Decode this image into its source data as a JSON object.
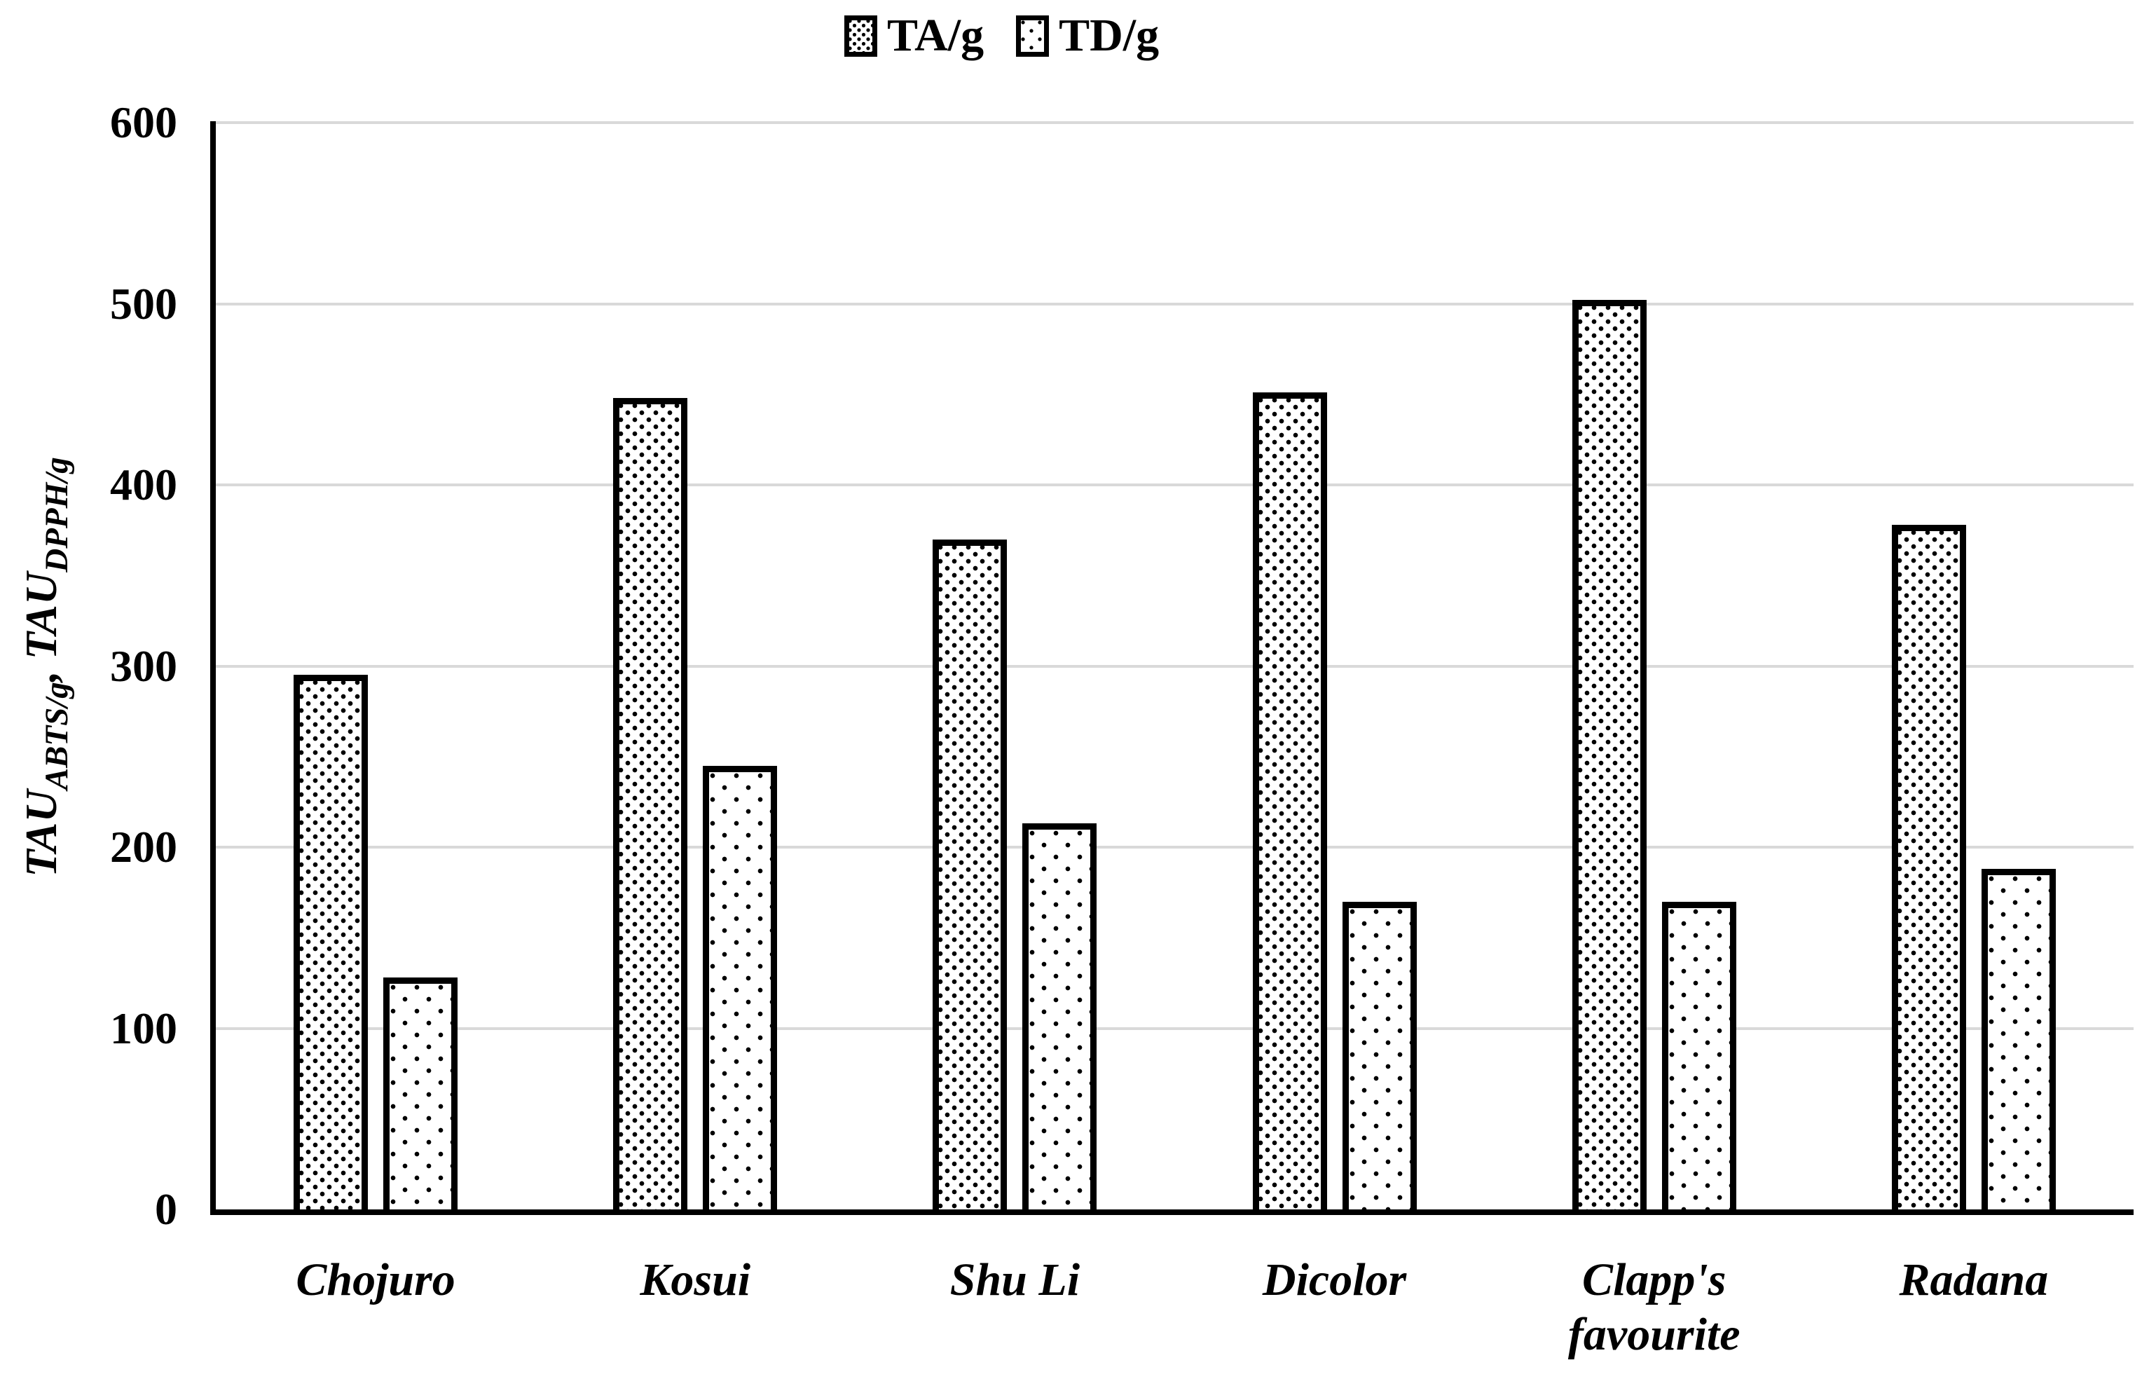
{
  "legend": {
    "items": [
      {
        "label": "TA/g",
        "pattern": "dense-dots"
      },
      {
        "label": "TD/g",
        "pattern": "sparse-dots"
      }
    ]
  },
  "y_axis": {
    "title_parts": {
      "p0": "TAU",
      "p0_sub": "ABTS/g",
      "p1": ", ",
      "p2": "TAU",
      "p2_sub": "DPPH/g"
    },
    "ticks": [
      0,
      100,
      200,
      300,
      400,
      500,
      600
    ]
  },
  "chart_data": {
    "type": "bar",
    "categories": [
      "Chojuro",
      "Kosui",
      "Shu Li",
      "Dicolor",
      "Clapp's favourite",
      "Radana"
    ],
    "series": [
      {
        "name": "TA/g",
        "values": [
          295,
          448,
          370,
          451,
          502,
          378
        ]
      },
      {
        "name": "TD/g",
        "values": [
          128,
          245,
          213,
          170,
          170,
          188
        ]
      }
    ],
    "title": "",
    "xlabel": "",
    "ylabel": "TAU_ABTS/g, TAU_DPPH/g",
    "ylim": [
      0,
      600
    ],
    "ytick_interval": 100,
    "grid": true,
    "legend_position": "top-center",
    "colors": {
      "grid": "#d9d9d9",
      "bar_border": "#000000",
      "bar_fill": "#ffffff",
      "text": "#000000"
    }
  }
}
